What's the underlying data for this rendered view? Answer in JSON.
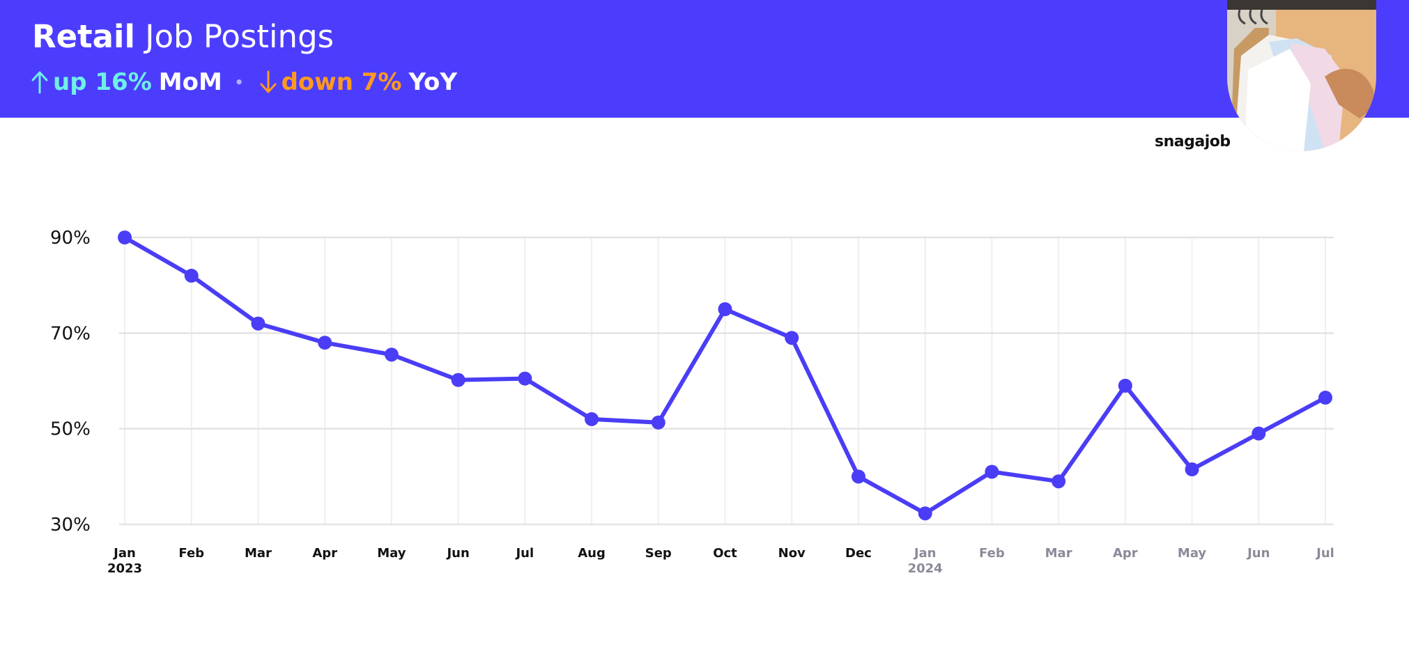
{
  "header": {
    "title_bold": "Retail",
    "title_rest": "Job Postings",
    "mom_value": "up 16%",
    "mom_label": "MoM",
    "yoy_value": "down 7%",
    "yoy_label": "YoY",
    "separator": "•",
    "brand": "snagajob"
  },
  "colors": {
    "brand_purple": "#4c3dfd",
    "up_teal": "#6ff0e6",
    "down_orange": "#ff9a1f",
    "line": "#4a3df5",
    "current_year_tick": "#111111",
    "prior_year_tick": "#8a8a99"
  },
  "icons": {
    "mom": "arrow-up-icon",
    "yoy": "arrow-down-icon"
  },
  "chart_data": {
    "type": "line",
    "title": "Retail Job Postings",
    "categories": [
      "Jan",
      "Feb",
      "Mar",
      "Apr",
      "May",
      "Jun",
      "Jul",
      "Aug",
      "Sep",
      "Oct",
      "Nov",
      "Dec",
      "Jan",
      "Feb",
      "Mar",
      "Apr",
      "May",
      "Jun",
      "Jul"
    ],
    "year_labels": [
      "2023",
      "",
      "",
      "",
      "",
      "",
      "",
      "",
      "",
      "",
      "",
      "",
      "2024",
      "",
      "",
      "",
      "",
      "",
      ""
    ],
    "series": [
      {
        "values": [
          90,
          82,
          72,
          68,
          65.5,
          60.2,
          60.5,
          52,
          51.3,
          75,
          69,
          40,
          32.3,
          41,
          39,
          59,
          41.5,
          49,
          56.5
        ]
      }
    ],
    "y_ticks": [
      30,
      50,
      70,
      90
    ],
    "y_tick_labels": [
      "30%",
      "50%",
      "70%",
      "90%"
    ],
    "ylim": [
      30,
      90
    ],
    "grid": true,
    "legend": "none"
  }
}
